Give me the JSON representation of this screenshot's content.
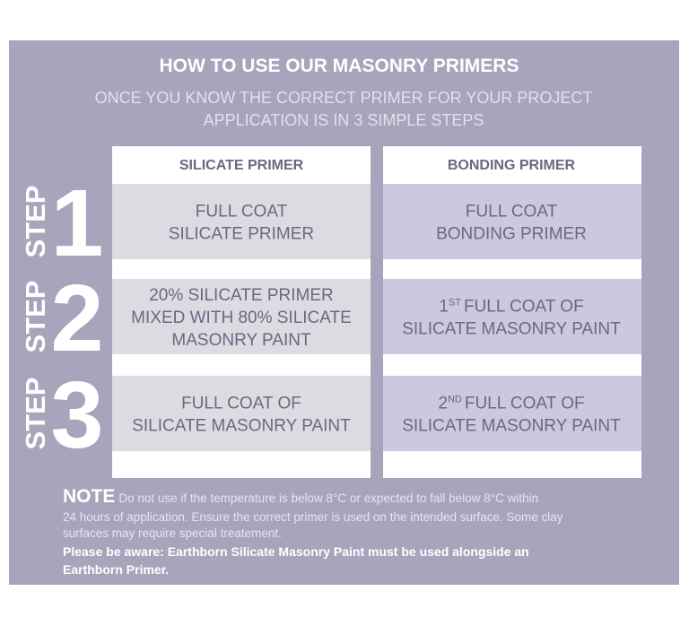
{
  "header": {
    "title": "HOW TO USE OUR MASONRY PRIMERS",
    "subtitle": [
      "ONCE YOU KNOW THE CORRECT PRIMER FOR YOUR PROJECT",
      "APPLICATION IS IN 3 SIMPLE STEPS"
    ]
  },
  "table": {
    "columns": [
      "SILICATE PRIMER",
      "BONDING PRIMER"
    ],
    "rows": [
      {
        "step_label": "STEP",
        "step": "1",
        "cells": [
          [
            "FULL COAT",
            "SILICATE PRIMER"
          ],
          [
            "FULL COAT",
            "BONDING PRIMER"
          ]
        ]
      },
      {
        "step_label": "STEP",
        "step": "2",
        "cells": [
          [
            "20% SILICATE PRIMER",
            "MIXED WITH 80% SILICATE",
            "MASONRY PAINT"
          ],
          [
            {
              "main": "1",
              "sup": "ST",
              "rest": "FULL COAT OF"
            },
            "SILICATE MASONRY PAINT"
          ]
        ]
      },
      {
        "step_label": "STEP",
        "step": "3",
        "cells": [
          [
            "FULL COAT OF",
            "SILICATE MASONRY PAINT"
          ],
          [
            {
              "main": "2",
              "sup": "ND",
              "rest": "FULL COAT OF"
            },
            "SILICATE MASONRY PAINT"
          ]
        ]
      }
    ]
  },
  "note": {
    "label": "NOTE",
    "text": [
      "Do not use if the temperature is below 8°C or expected to fall below 8°C within",
      "24 hours of application. Ensure the correct primer is used on the intended surface. Some clay",
      "surfaces may require special treatement."
    ],
    "warning": [
      "Please be aware: Earthborn Silicate Masonry Paint must be used alongside an",
      "Earthborn Primer."
    ]
  }
}
